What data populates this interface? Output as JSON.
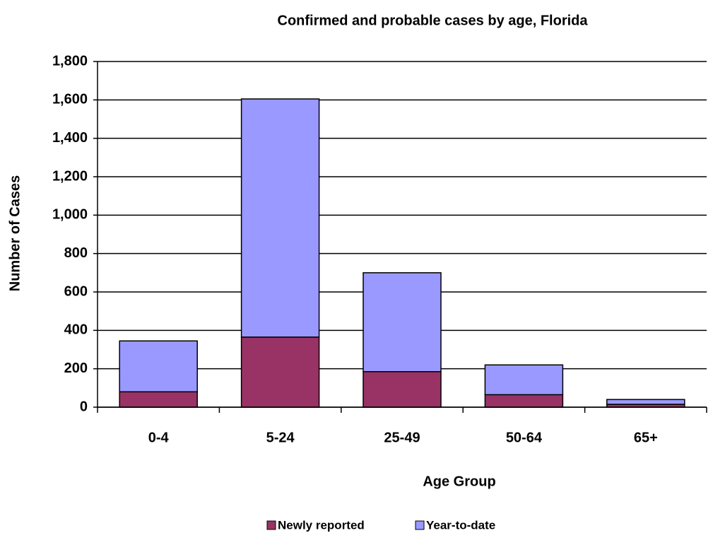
{
  "chart_data": {
    "type": "stacked_bar",
    "title": "Confirmed and probable cases by age, Florida",
    "x_label": "Age Group",
    "y_label": "Number of Cases",
    "categories": [
      "0-4",
      "5-24",
      "25-49",
      "50-64",
      "65+"
    ],
    "series": [
      {
        "name": "Newly reported",
        "color": "#993366",
        "values": [
          80,
          365,
          185,
          65,
          15
        ]
      },
      {
        "name": "Year-to-date",
        "color": "#9999ff",
        "values": [
          265,
          1240,
          515,
          155,
          25
        ]
      }
    ],
    "ylim": [
      0,
      1800
    ],
    "yticks": [
      0,
      200,
      400,
      600,
      800,
      {
        "value": 1000,
        "label": "1,000"
      },
      {
        "value": 1200,
        "label": "1,200"
      },
      {
        "value": 1400,
        "label": "1,400"
      },
      {
        "value": 1600,
        "label": "1,600"
      },
      {
        "value": 1800,
        "label": "1,800"
      }
    ],
    "grid": true,
    "legend": "bottom"
  }
}
